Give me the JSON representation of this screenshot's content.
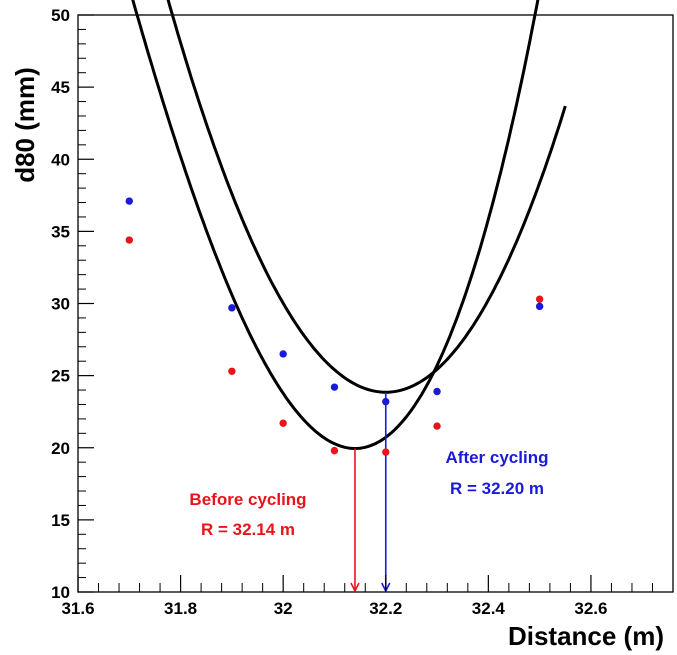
{
  "chart_data": {
    "type": "scatter",
    "xlabel": "Distance (m)",
    "ylabel": "d80 (mm)",
    "xlim": [
      31.6,
      32.76
    ],
    "ylim": [
      10,
      50
    ],
    "xticks": [
      31.6,
      31.8,
      32.0,
      32.2,
      32.4,
      32.6
    ],
    "xtick_labels": [
      "31.6",
      "31.8",
      "32",
      "32.2",
      "32.4",
      "32.6"
    ],
    "yticks": [
      10,
      15,
      20,
      25,
      30,
      35,
      40,
      45,
      50
    ],
    "ytick_labels": [
      "10",
      "15",
      "20",
      "25",
      "30",
      "35",
      "40",
      "45",
      "50"
    ],
    "grid": false,
    "colors": {
      "before": "#e8141b",
      "after": "#1a1adb",
      "fit": "#000000"
    },
    "series": [
      {
        "key": "before",
        "x": [
          31.7,
          31.9,
          32.0,
          32.1,
          32.2,
          32.3,
          32.5
        ],
        "y": [
          34.4,
          25.3,
          21.7,
          19.8,
          19.7,
          21.5,
          30.3
        ]
      },
      {
        "key": "after",
        "x": [
          31.7,
          31.9,
          32.0,
          32.1,
          32.2,
          32.3,
          32.5
        ],
        "y": [
          37.1,
          29.7,
          26.5,
          24.2,
          23.2,
          23.9,
          29.8
        ]
      }
    ],
    "fits": [
      {
        "key": "before",
        "x_range": [
          31.66,
          32.55
        ],
        "vertex_x": 32.14,
        "vertex_y": 19.95,
        "curvature": 209,
        "cubic": 100
      },
      {
        "key": "after",
        "x_range": [
          31.66,
          32.55
        ],
        "vertex_x": 32.2,
        "vertex_y": 23.85,
        "curvature": 157,
        "cubic": 14
      }
    ],
    "annotations": {
      "before": {
        "title": "Before cycling",
        "value": "R = 32.14 m",
        "arrow_x": 32.14
      },
      "after": {
        "title": "After cycling",
        "value": "R = 32.20 m",
        "arrow_x": 32.2
      }
    }
  }
}
